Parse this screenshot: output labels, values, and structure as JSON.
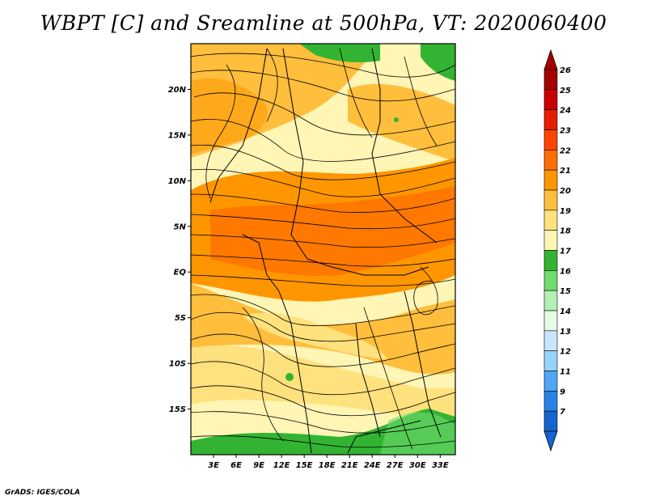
{
  "title": "WBPT [C] and Sreamline at 500hPa, VT: 2020060400",
  "credit": "GrADS: IGES/COLA",
  "map": {
    "lat_labels": [
      "20N",
      "15N",
      "10N",
      "5N",
      "EQ",
      "5S",
      "10S",
      "15S"
    ],
    "lat_values": [
      20,
      15,
      10,
      5,
      0,
      -5,
      -10,
      -15
    ],
    "lon_labels": [
      "3E",
      "6E",
      "9E",
      "12E",
      "15E",
      "18E",
      "21E",
      "24E",
      "27E",
      "30E",
      "33E"
    ],
    "lon_values": [
      3,
      6,
      9,
      12,
      15,
      18,
      21,
      24,
      27,
      30,
      33
    ],
    "lat_range": [
      -20,
      25
    ],
    "lon_range": [
      0,
      35
    ]
  },
  "colorbar": {
    "levels": [
      "26",
      "25",
      "24",
      "23",
      "22",
      "21",
      "20",
      "19",
      "18",
      "17",
      "16",
      "15",
      "14",
      "13",
      "12",
      "11",
      "9",
      "7"
    ],
    "colors": [
      "#a50000",
      "#c80000",
      "#e61e00",
      "#ff4400",
      "#ff6e00",
      "#ff9600",
      "#ffbe3c",
      "#ffe17d",
      "#fff5b4",
      "#32b432",
      "#6edc6e",
      "#b4f0b4",
      "#e6fae6",
      "#c8e6ff",
      "#96d2fa",
      "#50a5f5",
      "#2882e6",
      "#1464d2"
    ]
  }
}
